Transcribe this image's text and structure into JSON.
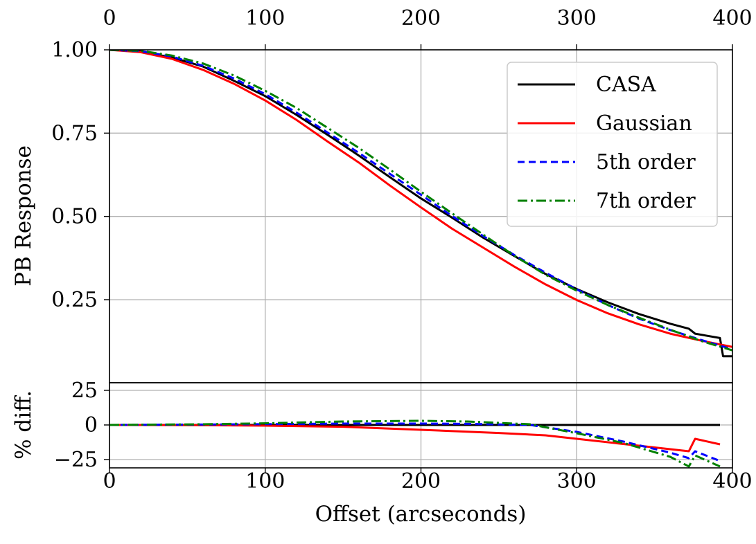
{
  "chart_data": [
    {
      "type": "line",
      "ylabel": "PB Response",
      "xlim": [
        0,
        400
      ],
      "ylim": [
        0.08,
        1.0
      ],
      "x_ticks": [
        "0",
        "100",
        "200",
        "300",
        "400"
      ],
      "y_ticks": [
        {
          "value": 1.0,
          "label": "1.00"
        },
        {
          "value": 0.75,
          "label": "0.75"
        },
        {
          "value": 0.5,
          "label": "0.50"
        },
        {
          "value": 0.25,
          "label": "0.25"
        }
      ],
      "grid": true,
      "legend_position": "top-right",
      "series": [
        {
          "name": "CASA",
          "color": "#000000",
          "dash": "solid",
          "x": [
            0,
            20,
            40,
            60,
            80,
            100,
            120,
            140,
            160,
            180,
            200,
            220,
            240,
            260,
            280,
            300,
            320,
            340,
            360,
            372,
            376,
            392,
            394,
            400
          ],
          "y": [
            1.0,
            0.995,
            0.977,
            0.95,
            0.907,
            0.861,
            0.805,
            0.745,
            0.683,
            0.618,
            0.554,
            0.496,
            0.436,
            0.381,
            0.327,
            0.282,
            0.242,
            0.207,
            0.178,
            0.163,
            0.148,
            0.135,
            0.08,
            0.08
          ]
        },
        {
          "name": "Gaussian",
          "color": "#ff0000",
          "dash": "solid",
          "x": [
            0,
            20,
            40,
            60,
            80,
            100,
            120,
            140,
            160,
            180,
            200,
            220,
            240,
            260,
            280,
            300,
            320,
            340,
            360,
            380,
            400
          ],
          "y": [
            1.0,
            0.993,
            0.973,
            0.94,
            0.898,
            0.848,
            0.79,
            0.725,
            0.662,
            0.593,
            0.527,
            0.463,
            0.406,
            0.349,
            0.296,
            0.249,
            0.209,
            0.176,
            0.148,
            0.127,
            0.108
          ]
        },
        {
          "name": "5th order",
          "color": "#0000ff",
          "dash": "10,6",
          "x": [
            0,
            20,
            40,
            60,
            80,
            100,
            120,
            140,
            160,
            180,
            200,
            220,
            240,
            260,
            280,
            300,
            320,
            340,
            360,
            380,
            400
          ],
          "y": [
            1.0,
            0.996,
            0.98,
            0.952,
            0.914,
            0.867,
            0.812,
            0.752,
            0.691,
            0.628,
            0.565,
            0.501,
            0.441,
            0.384,
            0.331,
            0.281,
            0.234,
            0.193,
            0.159,
            0.129,
            0.101
          ]
        },
        {
          "name": "7th order",
          "color": "#008000",
          "dash": "14,5,3,5",
          "x": [
            0,
            20,
            40,
            60,
            80,
            100,
            120,
            140,
            160,
            180,
            200,
            220,
            240,
            260,
            280,
            300,
            320,
            340,
            360,
            380,
            400
          ],
          "y": [
            1.0,
            0.997,
            0.983,
            0.959,
            0.923,
            0.877,
            0.826,
            0.766,
            0.706,
            0.641,
            0.574,
            0.509,
            0.445,
            0.382,
            0.325,
            0.277,
            0.234,
            0.196,
            0.16,
            0.126,
            0.098
          ]
        }
      ]
    },
    {
      "type": "line",
      "xlabel": "Offset (arcseconds)",
      "ylabel": "% diff.",
      "xlim": [
        0,
        400
      ],
      "ylim": [
        -30,
        30
      ],
      "x_ticks": [
        "0",
        "100",
        "200",
        "300",
        "400"
      ],
      "y_ticks": [
        {
          "value": 25,
          "label": "25"
        },
        {
          "value": 0,
          "label": "0"
        },
        {
          "value": -25,
          "label": "−25"
        }
      ],
      "grid": true,
      "series": [
        {
          "name": "CASA",
          "color": "#000000",
          "dash": "solid",
          "x": [
            0,
            100,
            200,
            300,
            392
          ],
          "y": [
            0,
            0,
            0,
            0,
            0
          ]
        },
        {
          "name": "Gaussian",
          "color": "#ff0000",
          "dash": "solid",
          "x": [
            0,
            60,
            100,
            150,
            200,
            250,
            280,
            300,
            340,
            372,
            376,
            392
          ],
          "y": [
            0,
            -0.2,
            -0.5,
            -1.3,
            -3.5,
            -5.8,
            -7.5,
            -10,
            -15,
            -19,
            -10,
            -14
          ]
        },
        {
          "name": "5th order",
          "color": "#0000ff",
          "dash": "10,6",
          "x": [
            0,
            60,
            100,
            150,
            200,
            230,
            270,
            300,
            330,
            360,
            372,
            376,
            392
          ],
          "y": [
            0,
            0.3,
            0.6,
            1,
            1,
            0.8,
            0,
            -5,
            -12,
            -20,
            -24,
            -19,
            -26
          ]
        },
        {
          "name": "7th order",
          "color": "#008000",
          "dash": "14,5,3,5",
          "x": [
            0,
            60,
            100,
            150,
            200,
            230,
            270,
            300,
            330,
            360,
            372,
            376,
            392
          ],
          "y": [
            0,
            0.5,
            1.2,
            2.5,
            3,
            2.5,
            0.5,
            -6,
            -13,
            -23,
            -30,
            -22,
            -30
          ]
        }
      ]
    }
  ]
}
